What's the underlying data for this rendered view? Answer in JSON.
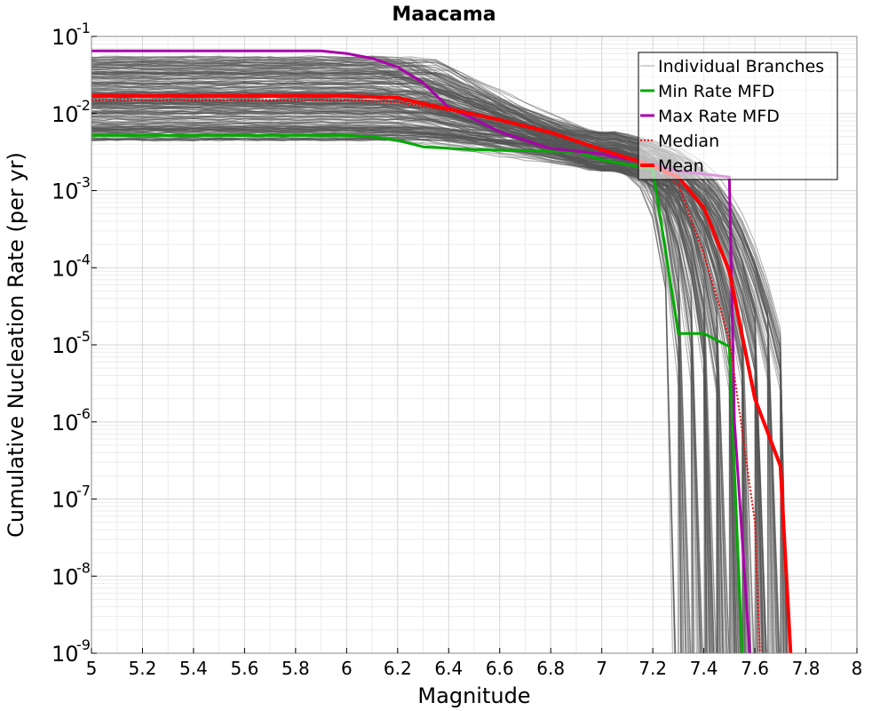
{
  "chart_data": {
    "type": "line",
    "title": "Maacama",
    "xlabel": "Magnitude",
    "ylabel": "Cumulative Nucleation Rate (per yr)",
    "xlim": [
      5,
      8
    ],
    "ylim": [
      1e-09,
      0.1
    ],
    "yscale": "log",
    "grid": true,
    "legend_position": "top-right",
    "x_ticks": [
      {
        "value": 5,
        "label": "5"
      },
      {
        "value": 5.2,
        "label": "5.2"
      },
      {
        "value": 5.4,
        "label": "5.4"
      },
      {
        "value": 5.6,
        "label": "5.6"
      },
      {
        "value": 5.8,
        "label": "5.8"
      },
      {
        "value": 6,
        "label": "6"
      },
      {
        "value": 6.2,
        "label": "6.2"
      },
      {
        "value": 6.4,
        "label": "6.4"
      },
      {
        "value": 6.6,
        "label": "6.6"
      },
      {
        "value": 6.8,
        "label": "6.8"
      },
      {
        "value": 7,
        "label": "7"
      },
      {
        "value": 7.2,
        "label": "7.2"
      },
      {
        "value": 7.4,
        "label": "7.4"
      },
      {
        "value": 7.6,
        "label": "7.6"
      },
      {
        "value": 7.8,
        "label": "7.8"
      },
      {
        "value": 8,
        "label": "8"
      }
    ],
    "y_ticks": [
      {
        "exp": -1,
        "base": "10",
        "sup": "-1"
      },
      {
        "exp": -2,
        "base": "10",
        "sup": "-2"
      },
      {
        "exp": -3,
        "base": "10",
        "sup": "-3"
      },
      {
        "exp": -4,
        "base": "10",
        "sup": "-4"
      },
      {
        "exp": -5,
        "base": "10",
        "sup": "-5"
      },
      {
        "exp": -6,
        "base": "10",
        "sup": "-6"
      },
      {
        "exp": -7,
        "base": "10",
        "sup": "-7"
      },
      {
        "exp": -8,
        "base": "10",
        "sup": "-8"
      },
      {
        "exp": -9,
        "base": "10",
        "sup": "-9"
      }
    ],
    "series": [
      {
        "name": "Min Rate MFD",
        "color": "#00aa00",
        "style": "solid",
        "x": [
          5,
          6.0,
          6.1,
          6.2,
          6.3,
          6.5,
          6.7,
          6.9,
          7.0,
          7.2,
          7.3,
          7.4,
          7.5,
          7.55
        ],
        "y": [
          0.0052,
          0.0052,
          0.005,
          0.0045,
          0.0037,
          0.0034,
          0.0033,
          0.0032,
          0.0025,
          0.0019,
          1.4e-05,
          1.4e-05,
          9.5e-06,
          1e-09
        ]
      },
      {
        "name": "Max Rate MFD",
        "color": "#aa00aa",
        "style": "solid",
        "x": [
          5,
          5.9,
          6.0,
          6.1,
          6.2,
          6.3,
          6.4,
          6.5,
          6.6,
          6.8,
          7.0,
          7.2,
          7.3,
          7.5,
          7.52,
          7.58
        ],
        "y": [
          0.065,
          0.065,
          0.06,
          0.052,
          0.04,
          0.025,
          0.012,
          0.0085,
          0.0058,
          0.0035,
          0.003,
          0.0022,
          0.0018,
          0.0015,
          1e-06,
          1e-09
        ]
      },
      {
        "name": "Median",
        "color": "#ff0000",
        "style": "dotted",
        "x": [
          5,
          6.0,
          6.2,
          6.4,
          6.6,
          6.8,
          7.0,
          7.2,
          7.3,
          7.4,
          7.5,
          7.6,
          7.62
        ],
        "y": [
          0.015,
          0.015,
          0.014,
          0.011,
          0.0082,
          0.0055,
          0.0034,
          0.0022,
          0.0012,
          0.00015,
          1.2e-05,
          5e-08,
          1e-09
        ]
      },
      {
        "name": "Mean",
        "color": "#ff0000",
        "style": "solid",
        "x": [
          5,
          6.0,
          6.2,
          6.3,
          6.4,
          6.6,
          6.8,
          7.0,
          7.2,
          7.3,
          7.4,
          7.5,
          7.6,
          7.7,
          7.74
        ],
        "y": [
          0.017,
          0.017,
          0.016,
          0.0135,
          0.0115,
          0.0083,
          0.0057,
          0.0034,
          0.0021,
          0.0015,
          0.0006,
          9e-05,
          2e-06,
          2.7e-07,
          1e-09
        ]
      }
    ],
    "branches": {
      "name": "Individual Branches",
      "color": "#555555",
      "y_flat_range": [
        0.0045,
        0.055
      ],
      "x_cutoff_range": [
        7.27,
        7.73
      ]
    }
  }
}
